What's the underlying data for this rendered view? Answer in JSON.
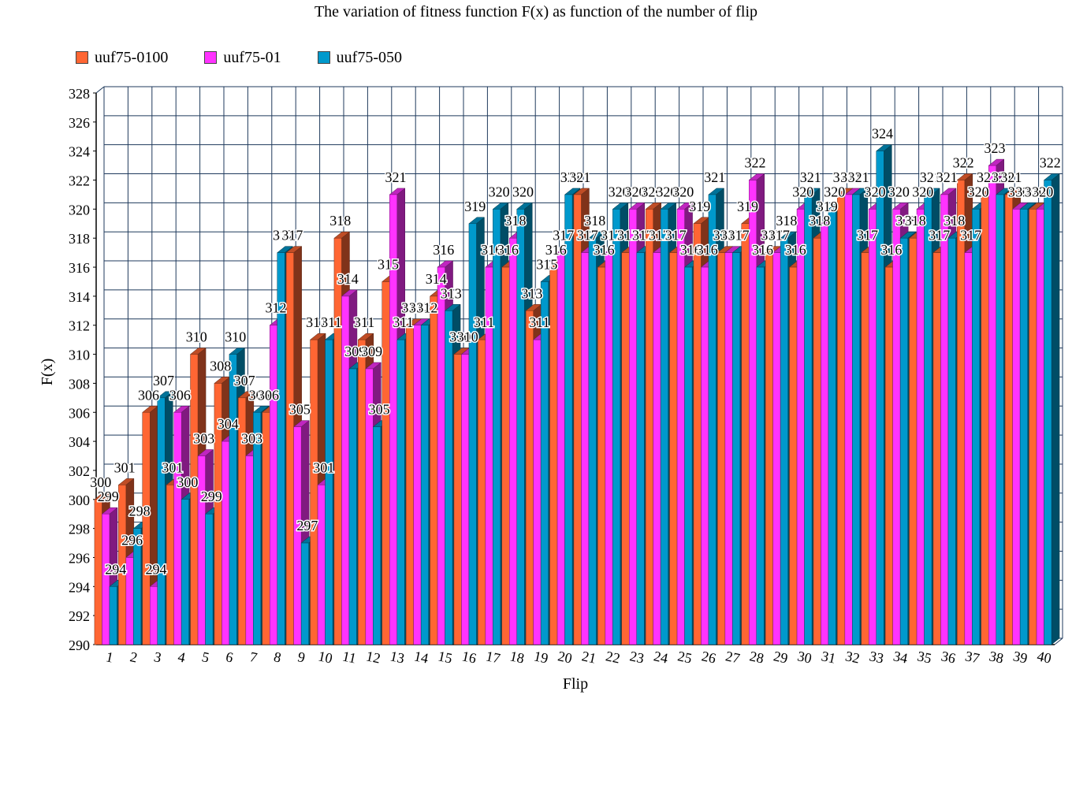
{
  "chart_data": {
    "type": "bar",
    "title": "The variation of fitness function F(x) as function of the number of flip",
    "xlabel": "Flip",
    "ylabel": "F(x)",
    "ylim": [
      290,
      328
    ],
    "ytick_step": 2,
    "grid": true,
    "legend": "top-left",
    "categories": [
      "1",
      "2",
      "3",
      "4",
      "5",
      "6",
      "7",
      "8",
      "9",
      "10",
      "11",
      "12",
      "13",
      "14",
      "15",
      "16",
      "17",
      "18",
      "19",
      "20",
      "21",
      "22",
      "23",
      "24",
      "25",
      "26",
      "27",
      "28",
      "29",
      "30",
      "31",
      "32",
      "33",
      "34",
      "35",
      "36",
      "37",
      "38",
      "39",
      "40"
    ],
    "series": [
      {
        "name": "uuf75-0100",
        "color": "#FF6633",
        "values": [
          300,
          301,
          306,
          301,
          310,
          308,
          307,
          306,
          317,
          311,
          318,
          311,
          315,
          312,
          314,
          310,
          311,
          316,
          313,
          316,
          321,
          316,
          317,
          320,
          317,
          319,
          317,
          319,
          317,
          316,
          318,
          321,
          317,
          316,
          318,
          317,
          322,
          321,
          321,
          320
        ]
      },
      {
        "name": "uuf75-01",
        "color": "#FF33FF",
        "values": [
          299,
          296,
          294,
          306,
          303,
          304,
          303,
          312,
          305,
          301,
          314,
          309,
          321,
          312,
          316,
          310,
          316,
          318,
          311,
          317,
          317,
          317,
          320,
          317,
          320,
          316,
          317,
          322,
          317,
          320,
          319,
          321,
          320,
          320,
          320,
          321,
          317,
          323,
          320,
          320
        ]
      },
      {
        "name": "uuf75-050",
        "color": "#0099CC",
        "values": [
          294,
          298,
          307,
          300,
          299,
          310,
          306,
          317,
          297,
          311,
          309,
          305,
          311,
          312,
          313,
          319,
          320,
          320,
          315,
          321,
          318,
          320,
          317,
          320,
          316,
          321,
          317,
          316,
          318,
          321,
          320,
          321,
          324,
          318,
          321,
          318,
          320,
          321,
          320,
          322
        ]
      }
    ]
  }
}
